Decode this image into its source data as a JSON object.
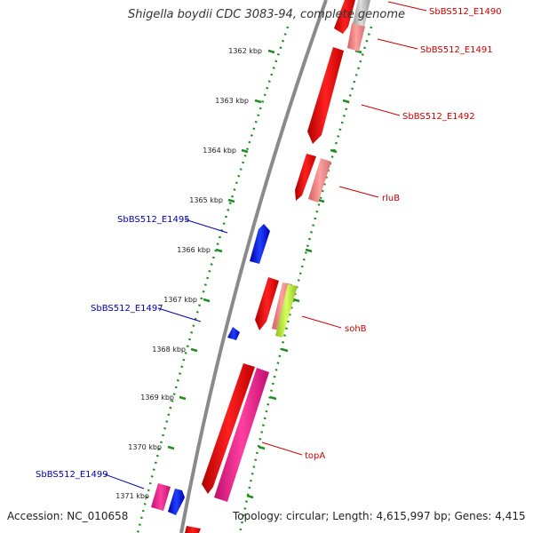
{
  "title": "Shigella boydii CDC 3083-94, complete genome",
  "footer": {
    "accession": "Accession: NC_010658",
    "topology": "Topology: circular; Length: 4,615,997 bp; Genes: 4,415"
  },
  "colors": {
    "red_gene": "#ff0000",
    "pink_gene": "#f08080",
    "blue_gene": "#0000ff",
    "magenta_gene": "#ff1493",
    "green_gene": "#adff2f",
    "right_label": "#cc0000",
    "left_label": "#0000aa",
    "tick": "#228b22"
  },
  "ruler_labels": [
    "1362 kbp",
    "1363 kbp",
    "1364 kbp",
    "1365 kbp",
    "1366 kbp",
    "1367 kbp",
    "1368 kbp",
    "1369 kbp",
    "1370 kbp",
    "1371 kbp"
  ],
  "gene_labels_right": [
    "SbBS512_E1490",
    "SbBS512_E1491",
    "SbBS512_E1492",
    "rluB",
    "sohB",
    "topA"
  ],
  "gene_labels_left": [
    "SbBS512_E1495",
    "SbBS512_E1497",
    "SbBS512_E1499"
  ]
}
